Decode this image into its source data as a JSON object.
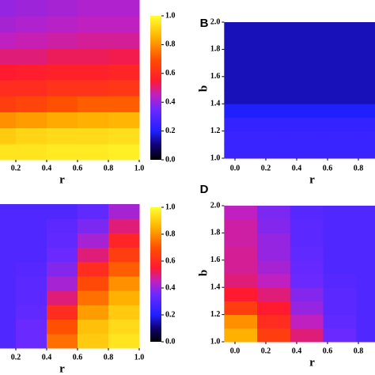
{
  "chart_data": [
    {
      "type": "heatmap",
      "x_label": "r",
      "xlim": [
        0,
        1
      ],
      "ylim": [
        1,
        2
      ],
      "xticks": [
        0.2,
        0.4,
        0.6,
        0.8,
        {
          "value": 1,
          "label": "1.0"
        }
      ],
      "clim": [
        0,
        1
      ],
      "colorbar_ticks": [
        {
          "value": 0,
          "label": "0.0"
        },
        0.2,
        0.4,
        0.6,
        0.8,
        {
          "value": 1,
          "label": "1.0"
        }
      ],
      "colormap": [
        [
          0,
          "#000000"
        ],
        [
          0.1,
          "#100070"
        ],
        [
          0.2,
          "#2020ff"
        ],
        [
          0.35,
          "#6a2aff"
        ],
        [
          0.45,
          "#c020c0"
        ],
        [
          0.55,
          "#ff1a30"
        ],
        [
          0.7,
          "#ff5000"
        ],
        [
          0.85,
          "#ffb000"
        ],
        [
          1,
          "#ffff30"
        ]
      ],
      "z": [
        [
          0.95,
          0.95,
          0.96,
          0.96,
          0.97
        ],
        [
          0.9,
          0.92,
          0.93,
          0.93,
          0.94
        ],
        [
          0.8,
          0.82,
          0.84,
          0.85,
          0.86
        ],
        [
          0.65,
          0.67,
          0.7,
          0.72,
          0.72
        ],
        [
          0.6,
          0.6,
          0.62,
          0.62,
          0.63
        ],
        [
          0.55,
          0.56,
          0.57,
          0.57,
          0.58
        ],
        [
          0.5,
          0.5,
          0.52,
          0.52,
          0.53
        ],
        [
          0.45,
          0.46,
          0.47,
          0.48,
          0.48
        ],
        [
          0.42,
          0.43,
          0.44,
          0.45,
          0.45
        ],
        [
          0.4,
          0.41,
          0.42,
          0.43,
          0.43
        ]
      ]
    },
    {
      "type": "heatmap",
      "panel_label": "B",
      "x_label": "r",
      "y_label": "b",
      "xlim": [
        -0.07,
        1
      ],
      "ylim": [
        1,
        2
      ],
      "xticks": [
        {
          "value": 0,
          "label": "0.0"
        },
        0.2,
        0.4,
        0.6,
        0.8
      ],
      "yticks": [
        {
          "value": 1,
          "label": "1.0"
        },
        1.2,
        1.4,
        1.6,
        1.8,
        {
          "value": 2,
          "label": "2.0"
        }
      ],
      "clim": [
        0,
        1
      ],
      "colormap": [
        [
          0,
          "#000000"
        ],
        [
          0.1,
          "#100070"
        ],
        [
          0.2,
          "#2020ff"
        ],
        [
          0.35,
          "#6a2aff"
        ],
        [
          0.45,
          "#c020c0"
        ],
        [
          0.55,
          "#ff1a30"
        ],
        [
          0.7,
          "#ff5000"
        ],
        [
          0.85,
          "#ffb000"
        ],
        [
          1,
          "#ffff30"
        ]
      ],
      "z": [
        [
          0.25,
          0.25,
          0.25,
          0.25,
          0.25
        ],
        [
          0.25,
          0.25,
          0.25,
          0.25,
          0.25
        ],
        [
          0.24,
          0.24,
          0.24,
          0.24,
          0.24
        ],
        [
          0.2,
          0.2,
          0.2,
          0.2,
          0.2
        ],
        [
          0.15,
          0.15,
          0.15,
          0.15,
          0.15
        ],
        [
          0.15,
          0.15,
          0.15,
          0.15,
          0.15
        ],
        [
          0.15,
          0.15,
          0.15,
          0.15,
          0.15
        ],
        [
          0.15,
          0.15,
          0.15,
          0.15,
          0.15
        ],
        [
          0.15,
          0.15,
          0.15,
          0.15,
          0.15
        ],
        [
          0.15,
          0.15,
          0.15,
          0.15,
          0.15
        ]
      ]
    },
    {
      "type": "heatmap",
      "x_label": "r",
      "xlim": [
        0,
        1
      ],
      "ylim": [
        1,
        2
      ],
      "xticks": [
        0.2,
        0.4,
        0.6,
        0.8,
        {
          "value": 1,
          "label": "1.0"
        }
      ],
      "clim": [
        0,
        1
      ],
      "colorbar_ticks": [
        {
          "value": 0,
          "label": "0.0"
        },
        0.2,
        0.4,
        0.6,
        0.8,
        {
          "value": 1,
          "label": "1.0"
        }
      ],
      "colormap": [
        [
          0,
          "#000000"
        ],
        [
          0.1,
          "#100070"
        ],
        [
          0.2,
          "#2020ff"
        ],
        [
          0.35,
          "#6a2aff"
        ],
        [
          0.45,
          "#c020c0"
        ],
        [
          0.55,
          "#ff1a30"
        ],
        [
          0.7,
          "#ff5000"
        ],
        [
          0.85,
          "#ffb000"
        ],
        [
          1,
          "#ffff30"
        ]
      ],
      "z": [
        [
          0.3,
          0.35,
          0.75,
          0.9,
          0.95
        ],
        [
          0.3,
          0.35,
          0.7,
          0.88,
          0.93
        ],
        [
          0.3,
          0.33,
          0.6,
          0.82,
          0.9
        ],
        [
          0.3,
          0.32,
          0.5,
          0.75,
          0.85
        ],
        [
          0.3,
          0.32,
          0.42,
          0.68,
          0.8
        ],
        [
          0.3,
          0.31,
          0.38,
          0.6,
          0.72
        ],
        [
          0.3,
          0.3,
          0.35,
          0.5,
          0.65
        ],
        [
          0.3,
          0.3,
          0.33,
          0.42,
          0.58
        ],
        [
          0.3,
          0.3,
          0.32,
          0.37,
          0.5
        ],
        [
          0.3,
          0.3,
          0.3,
          0.33,
          0.42
        ]
      ]
    },
    {
      "type": "heatmap",
      "panel_label": "D",
      "x_label": "r",
      "y_label": "b",
      "xlim": [
        -0.07,
        1
      ],
      "ylim": [
        1,
        2
      ],
      "xticks": [
        {
          "value": 0,
          "label": "0.0"
        },
        0.2,
        0.4,
        0.6,
        0.8
      ],
      "yticks": [
        {
          "value": 1,
          "label": "1.0"
        },
        1.2,
        1.4,
        1.6,
        1.8,
        {
          "value": 2,
          "label": "2.0"
        }
      ],
      "clim": [
        0,
        1
      ],
      "colormap": [
        [
          0,
          "#000000"
        ],
        [
          0.1,
          "#100070"
        ],
        [
          0.2,
          "#2020ff"
        ],
        [
          0.35,
          "#6a2aff"
        ],
        [
          0.45,
          "#c020c0"
        ],
        [
          0.55,
          "#ff1a30"
        ],
        [
          0.7,
          "#ff5000"
        ],
        [
          0.85,
          "#ffb000"
        ],
        [
          1,
          "#ffff30"
        ]
      ],
      "z": [
        [
          0.85,
          0.65,
          0.5,
          0.35,
          0.3
        ],
        [
          0.8,
          0.6,
          0.45,
          0.33,
          0.3
        ],
        [
          0.65,
          0.55,
          0.4,
          0.32,
          0.3
        ],
        [
          0.55,
          0.5,
          0.38,
          0.32,
          0.3
        ],
        [
          0.5,
          0.45,
          0.35,
          0.31,
          0.3
        ],
        [
          0.48,
          0.42,
          0.34,
          0.3,
          0.3
        ],
        [
          0.48,
          0.4,
          0.33,
          0.3,
          0.3
        ],
        [
          0.47,
          0.4,
          0.32,
          0.3,
          0.3
        ],
        [
          0.47,
          0.38,
          0.32,
          0.3,
          0.3
        ],
        [
          0.45,
          0.37,
          0.31,
          0.3,
          0.3
        ]
      ]
    }
  ]
}
